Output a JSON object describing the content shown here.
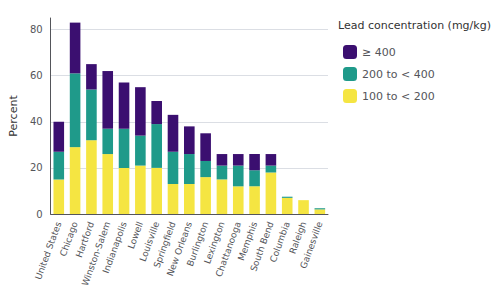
{
  "chart_data": {
    "type": "bar",
    "stacked": true,
    "categories": [
      "United States",
      "Chicago",
      "Hartford",
      "Winston-Salem",
      "Indianapolis",
      "Lowell",
      "Louisville",
      "Springfield",
      "New Orleans",
      "Burlington",
      "Lexington",
      "Chattanooga",
      "Memphis",
      "South Bend",
      "Columbia",
      "Raleigh",
      "Gainesville"
    ],
    "series": [
      {
        "name": "100 to < 200",
        "color": "#f5e542",
        "values": [
          15,
          29,
          32,
          26,
          20,
          21,
          20,
          13,
          13,
          16,
          15,
          12,
          12,
          18,
          7,
          6,
          2
        ]
      },
      {
        "name": "200 to < 400",
        "color": "#1f9a8a",
        "values": [
          12,
          32,
          22,
          11,
          17,
          13,
          19,
          14,
          13,
          7,
          6,
          9,
          7,
          3,
          0.5,
          0,
          0.5
        ]
      },
      {
        "name": "≥ 400",
        "color": "#3b0f70",
        "values": [
          13,
          22,
          11,
          25,
          20,
          21,
          10,
          16,
          12,
          12,
          5,
          5,
          7,
          5,
          0,
          0,
          0
        ]
      }
    ],
    "ylabel": "Percent",
    "ylim": [
      0,
      85
    ],
    "yticks": [
      0,
      20,
      40,
      60,
      80
    ],
    "grid": true,
    "legend": "right",
    "legend_title": "Lead concentration (mg/kg)"
  }
}
